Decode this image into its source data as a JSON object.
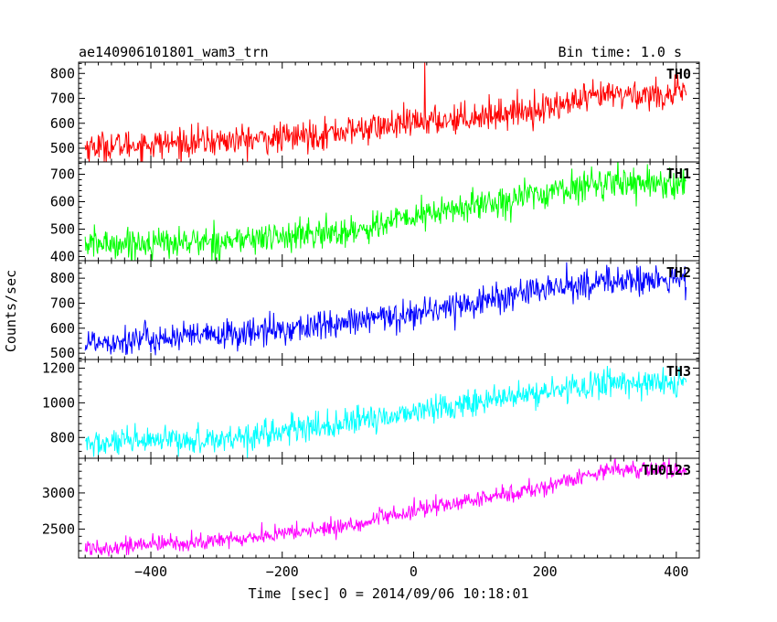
{
  "header": {
    "title": "ae140906101801_wam3_trn",
    "bin_time": "Bin time: 1.0 s"
  },
  "chart_data": {
    "type": "line",
    "xlabel": "Time [sec] 0 = 2014/09/06 10:18:01",
    "ylabel": "Counts/sec",
    "xlim": [
      -510,
      435
    ],
    "x_ticks": [
      -400,
      -200,
      0,
      200,
      400
    ],
    "x_tick_labels": [
      "−400",
      "−200",
      "0",
      "200",
      "400"
    ],
    "x_range": [
      -500,
      415
    ],
    "x_step": 1.0,
    "panels": [
      {
        "name": "TH0",
        "color": "#ff0000",
        "ylim": [
          445,
          845
        ],
        "y_ticks": [
          500,
          600,
          700,
          800
        ],
        "trend": [
          [
            -500,
            505
          ],
          [
            -200,
            540
          ],
          [
            0,
            600
          ],
          [
            200,
            660
          ],
          [
            300,
            715
          ],
          [
            415,
            715
          ]
        ],
        "noise": 30,
        "spikes": [
          [
            17,
            845
          ]
        ]
      },
      {
        "name": "TH1",
        "color": "#00ff00",
        "ylim": [
          385,
          745
        ],
        "y_ticks": [
          400,
          500,
          600,
          700
        ],
        "trend": [
          [
            -500,
            445
          ],
          [
            -300,
            455
          ],
          [
            -100,
            490
          ],
          [
            0,
            545
          ],
          [
            150,
            610
          ],
          [
            300,
            675
          ],
          [
            415,
            665
          ]
        ],
        "noise": 28,
        "spikes": []
      },
      {
        "name": "TH2",
        "color": "#0000ff",
        "ylim": [
          475,
          870
        ],
        "y_ticks": [
          500,
          600,
          700,
          800
        ],
        "trend": [
          [
            -500,
            545
          ],
          [
            -300,
            570
          ],
          [
            -100,
            620
          ],
          [
            0,
            660
          ],
          [
            200,
            755
          ],
          [
            300,
            790
          ],
          [
            415,
            790
          ]
        ],
        "noise": 30,
        "spikes": []
      },
      {
        "name": "TH3",
        "color": "#00ffff",
        "ylim": [
          680,
          1250
        ],
        "y_ticks": [
          800,
          1000,
          1200
        ],
        "trend": [
          [
            -500,
            760
          ],
          [
            -300,
            790
          ],
          [
            -100,
            880
          ],
          [
            0,
            950
          ],
          [
            200,
            1060
          ],
          [
            300,
            1120
          ],
          [
            415,
            1110
          ]
        ],
        "noise": 40,
        "spikes": []
      },
      {
        "name": "TH0123",
        "color": "#ff00ff",
        "ylim": [
          2100,
          3480
        ],
        "y_ticks": [
          2500,
          3000
        ],
        "trend": [
          [
            -500,
            2240
          ],
          [
            -300,
            2330
          ],
          [
            -100,
            2540
          ],
          [
            0,
            2750
          ],
          [
            200,
            3080
          ],
          [
            300,
            3340
          ],
          [
            415,
            3310
          ]
        ],
        "noise": 60,
        "spikes": []
      }
    ]
  }
}
